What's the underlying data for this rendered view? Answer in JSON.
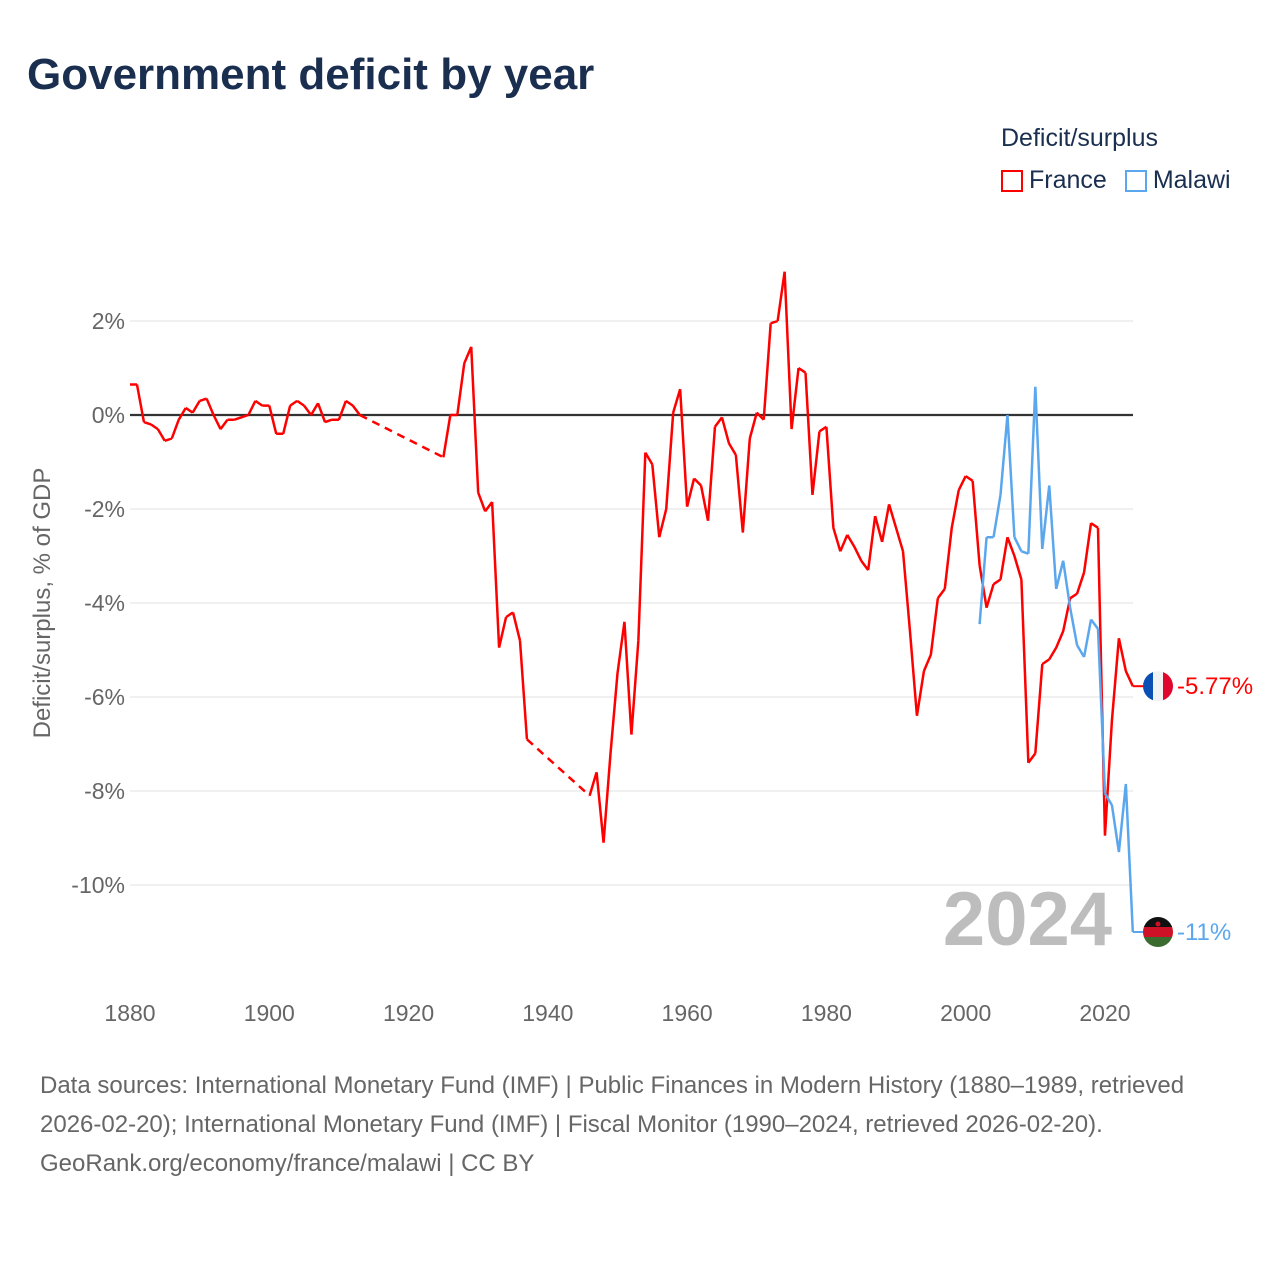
{
  "title": "Government deficit by year",
  "legend": {
    "title": "Deficit/surplus",
    "items": [
      {
        "name": "France",
        "color": "#ff0000"
      },
      {
        "name": "Malawi",
        "color": "#5ba7ee"
      }
    ]
  },
  "watermark_year": "2024",
  "footer": {
    "sources": "Data sources: International Monetary Fund (IMF) | Public Finances in Modern History (1880–1989, retrieved 2026-02-20); International Monetary Fund (IMF) | Fiscal Monitor (1990–2024, retrieved 2026-02-20).",
    "credit": "GeoRank.org/economy/france/malawi | CC BY"
  },
  "chart_data": {
    "type": "line",
    "title": "Government deficit by year",
    "xlabel": "",
    "ylabel": "Deficit/surplus, % of GDP",
    "xlim": [
      1880,
      2024
    ],
    "ylim": [
      -12,
      3.2
    ],
    "xticks": [
      1880,
      1900,
      1920,
      1940,
      1960,
      1980,
      2000,
      2020
    ],
    "xtick_labels": [
      "1880",
      "1900",
      "1920",
      "1940",
      "1960",
      "1980",
      "2000",
      "2020"
    ],
    "yticks": [
      2,
      0,
      -2,
      -4,
      -6,
      -8,
      -10
    ],
    "ytick_labels": [
      "2%",
      "0%",
      "-2%",
      "-4%",
      "-6%",
      "-8%",
      "-10%"
    ],
    "grid": true,
    "legend_position": "top-right",
    "series": [
      {
        "name": "France",
        "color": "#ff0000",
        "end_label": "-5.77%",
        "start_year": 1880,
        "values": [
          0.65,
          0.65,
          -0.15,
          -0.2,
          -0.3,
          -0.55,
          -0.5,
          -0.1,
          0.15,
          0.05,
          0.3,
          0.35,
          0,
          -0.3,
          -0.1,
          -0.1,
          -0.05,
          0,
          0.3,
          0.2,
          0.2,
          -0.4,
          -0.4,
          0.2,
          0.3,
          0.2,
          0,
          0.25,
          -0.15,
          -0.1,
          -0.1,
          0.3,
          0.2,
          0.0,
          null,
          null,
          null,
          null,
          null,
          null,
          null,
          null,
          null,
          null,
          null,
          -0.9,
          0,
          0,
          1.1,
          1.45,
          -1.65,
          -2.05,
          -1.85,
          -4.95,
          -4.3,
          -4.2,
          -4.8,
          -6.9,
          null,
          null,
          null,
          null,
          null,
          null,
          null,
          null,
          -8.1,
          -7.6,
          -9.1,
          -7.2,
          -5.5,
          -4.4,
          -6.8,
          -4.8,
          -0.8,
          -1.05,
          -2.6,
          -2.0,
          0.05,
          0.55,
          -1.95,
          -1.35,
          -1.5,
          -2.25,
          -0.25,
          -0.05,
          -0.6,
          -0.85,
          -2.5,
          -0.5,
          0.05,
          -0.1,
          1.95,
          2.0,
          3.05,
          -0.3,
          1.0,
          0.9,
          -1.7,
          -0.35,
          -0.25,
          -2.4,
          -2.9,
          -2.55,
          -2.8,
          -3.1,
          -3.3,
          -2.15,
          -2.7,
          -1.9,
          -2.4,
          -2.9,
          -4.6,
          -6.4,
          -5.45,
          -5.1,
          -3.9,
          -3.7,
          -2.4,
          -1.6,
          -1.3,
          -1.4,
          -3.2,
          -4.1,
          -3.6,
          -3.5,
          -2.6,
          -3.0,
          -3.5,
          -7.4,
          -7.2,
          -5.3,
          -5.2,
          -4.95,
          -4.6,
          -3.9,
          -3.8,
          -3.35,
          -2.3,
          -2.4,
          -8.95,
          -6.5,
          -4.75,
          -5.45,
          -5.77
        ]
      },
      {
        "name": "Malawi",
        "color": "#5ba7ee",
        "end_label": "-11%",
        "start_year": 2002,
        "values": [
          -4.45,
          -2.6,
          -2.6,
          -1.7,
          0,
          -2.6,
          -2.9,
          -2.95,
          0.6,
          -2.85,
          -1.5,
          -3.7,
          -3.1,
          -4.1,
          -4.9,
          -5.15,
          -4.35,
          -4.55,
          -8.05,
          -8.3,
          -9.3,
          -7.85,
          -11
        ]
      }
    ]
  }
}
